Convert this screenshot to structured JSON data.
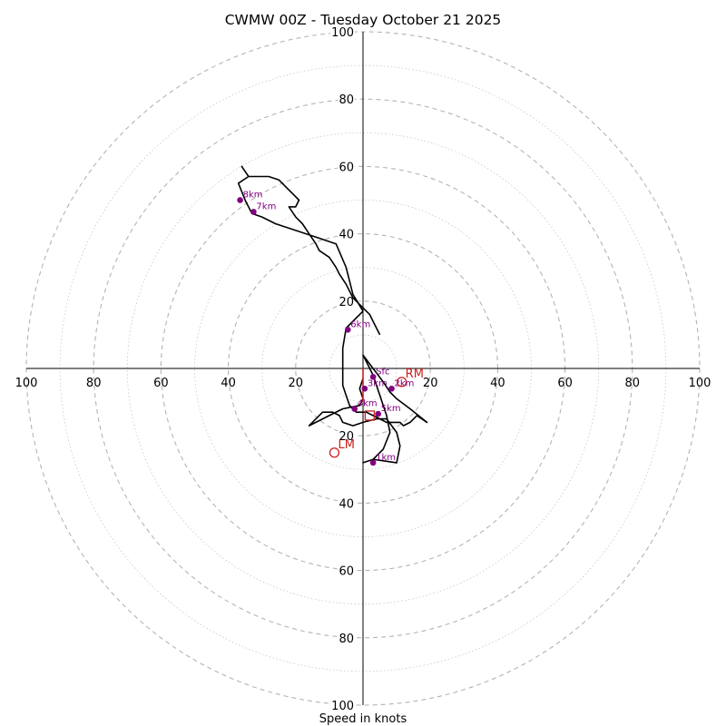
{
  "chart_data": {
    "type": "hodograph",
    "title": "CWMW 00Z - Tuesday October 21 2025",
    "xlabel": "Speed in knots",
    "range_knots": 100,
    "ring_major_step": 20,
    "ring_minor_step": 10,
    "x_ticks": [
      "100",
      "80",
      "60",
      "40",
      "20",
      "20",
      "40",
      "60",
      "80",
      "100"
    ],
    "y_ticks_up": [
      "100",
      "80",
      "60",
      "40",
      "20"
    ],
    "y_ticks_down": [
      "20",
      "40",
      "60",
      "80",
      "100"
    ],
    "trace": [
      [
        5,
        10
      ],
      [
        3,
        14
      ],
      [
        2,
        16
      ],
      [
        0,
        18
      ],
      [
        -3,
        21
      ],
      [
        -5,
        25
      ],
      [
        -7,
        28
      ],
      [
        -8,
        30
      ],
      [
        -10,
        33
      ],
      [
        -13,
        35
      ],
      [
        -14,
        37
      ],
      [
        -16,
        40
      ],
      [
        -18,
        43
      ],
      [
        -20,
        45
      ],
      [
        -22,
        48
      ],
      [
        -20,
        48
      ],
      [
        -19,
        50
      ],
      [
        -21,
        52
      ],
      [
        -23,
        54
      ],
      [
        -25,
        56
      ],
      [
        -28,
        57
      ],
      [
        -34,
        57
      ],
      [
        -36,
        60
      ],
      [
        -34,
        57
      ],
      [
        -37,
        55
      ],
      [
        -35,
        50
      ],
      [
        -33,
        46
      ],
      [
        -30,
        45
      ],
      [
        -26,
        43
      ],
      [
        -20,
        41
      ],
      [
        -14,
        39
      ],
      [
        -8,
        37
      ],
      [
        -5,
        30
      ],
      [
        -3,
        22
      ],
      [
        0,
        17
      ],
      [
        -5,
        12
      ],
      [
        -6,
        6
      ],
      [
        -6,
        0
      ],
      [
        -6,
        -5
      ],
      [
        -5,
        -8
      ],
      [
        -4,
        -11
      ],
      [
        -3,
        -12
      ],
      [
        -2,
        -13
      ],
      [
        1,
        -13
      ],
      [
        3,
        -14
      ],
      [
        5,
        -15
      ],
      [
        7,
        -16
      ],
      [
        9,
        -16
      ],
      [
        11,
        -16
      ],
      [
        12,
        -17
      ],
      [
        14,
        -16
      ],
      [
        16,
        -14
      ],
      [
        19,
        -16
      ],
      [
        14,
        -12
      ],
      [
        10,
        -9
      ],
      [
        8,
        -7
      ],
      [
        6,
        -4
      ],
      [
        3,
        0
      ],
      [
        0,
        4
      ],
      [
        3,
        -2
      ],
      [
        5,
        -8
      ],
      [
        7,
        -14
      ],
      [
        8,
        -19
      ],
      [
        6,
        -24
      ],
      [
        3,
        -27
      ],
      [
        0,
        -28
      ],
      [
        3,
        -27
      ],
      [
        10,
        -28
      ],
      [
        11,
        -23
      ],
      [
        10,
        -19
      ],
      [
        7,
        -15
      ],
      [
        4,
        -15
      ],
      [
        0,
        -16
      ],
      [
        -3,
        -17
      ],
      [
        -6,
        -16
      ],
      [
        -7,
        -14
      ],
      [
        -9,
        -13
      ],
      [
        -12,
        -13
      ],
      [
        -14,
        -15
      ],
      [
        -16,
        -17
      ],
      [
        -10,
        -14
      ],
      [
        -6,
        -12
      ],
      [
        -1,
        -11
      ],
      [
        0,
        -9
      ],
      [
        -1,
        -6
      ],
      [
        0,
        -3
      ]
    ],
    "height_markers": [
      {
        "label": "Sfc",
        "x": 3,
        "y": -2.5
      },
      {
        "label": "1km",
        "x": 3,
        "y": -28
      },
      {
        "label": "2km",
        "x": 8.5,
        "y": -6
      },
      {
        "label": "3km",
        "x": 0.5,
        "y": -6
      },
      {
        "label": "4km",
        "x": -2.5,
        "y": -12
      },
      {
        "label": "5km",
        "x": 4.5,
        "y": -13.5
      },
      {
        "label": "6km",
        "x": -4.5,
        "y": 11.5
      },
      {
        "label": "7km",
        "x": -32.5,
        "y": 46.5
      },
      {
        "label": "8km",
        "x": -36.5,
        "y": 50
      }
    ],
    "storm_motion": [
      {
        "label": "RM",
        "x": 11.5,
        "y": -4
      },
      {
        "label": "LM",
        "x": -8.5,
        "y": -25
      }
    ],
    "mean_wind_marker": {
      "x": 2,
      "y": -14
    },
    "shear_vector": {
      "x0": 0,
      "y0": 0,
      "x1": 0,
      "y1": -10
    },
    "colors": {
      "trace": "#000000",
      "markers": "#800080",
      "motion": "#cc1e1e",
      "rings": "#b4b4b4"
    }
  }
}
